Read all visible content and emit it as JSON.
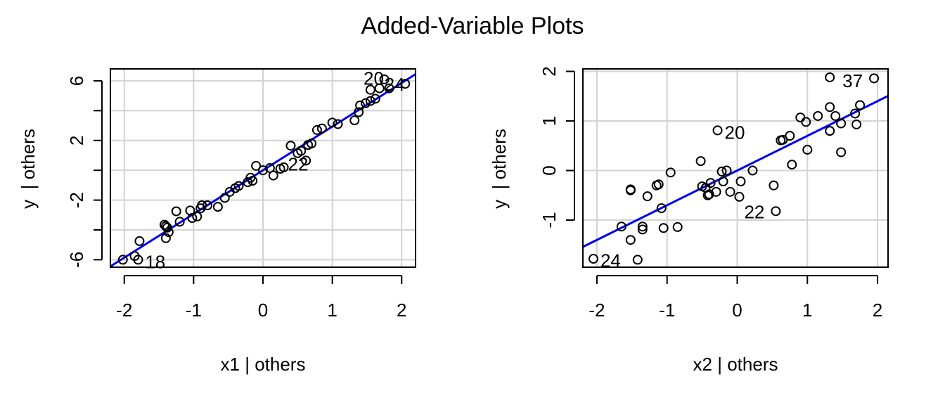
{
  "title": "Added-Variable Plots",
  "colors": {
    "fit_line": "#0000ee",
    "grid": "#d3d3d3",
    "point_stroke": "#000000",
    "frame": "#000000"
  },
  "chart_data": [
    {
      "type": "scatter",
      "xlabel": "x1 | others",
      "ylabel": "y  | others",
      "xlim": [
        -2.2,
        2.2
      ],
      "ylim": [
        -6.5,
        6.8
      ],
      "xticks": [
        -2,
        -1,
        0,
        1,
        2
      ],
      "xtick_labels": [
        "-2",
        "-1",
        "0",
        "1",
        "2"
      ],
      "yticks": [
        -6,
        -4,
        -2,
        0,
        2,
        4,
        6
      ],
      "ytick_labels": [
        "-6",
        "",
        "-2",
        "",
        "2",
        "",
        "6"
      ],
      "grid": true,
      "fit_line": {
        "slope": 2.93,
        "intercept": 0.0
      },
      "points": [
        [
          -2.02,
          -6.0
        ],
        [
          -1.85,
          -5.75
        ],
        [
          -1.8,
          -6.0
        ],
        [
          -1.78,
          -4.75
        ],
        [
          -1.4,
          -4.55
        ],
        [
          -1.42,
          -3.65
        ],
        [
          -1.4,
          -3.75
        ],
        [
          -1.36,
          -4.15
        ],
        [
          -1.38,
          -3.85
        ],
        [
          -1.25,
          -2.75
        ],
        [
          -1.2,
          -3.45
        ],
        [
          -1.05,
          -2.7
        ],
        [
          -1.02,
          -3.2
        ],
        [
          -0.95,
          -3.1
        ],
        [
          -0.9,
          -2.55
        ],
        [
          -0.88,
          -2.35
        ],
        [
          -0.8,
          -2.35
        ],
        [
          -0.65,
          -2.45
        ],
        [
          -0.55,
          -1.85
        ],
        [
          -0.48,
          -1.45
        ],
        [
          -0.4,
          -1.2
        ],
        [
          -0.35,
          -1.05
        ],
        [
          -0.22,
          -0.8
        ],
        [
          -0.18,
          -0.5
        ],
        [
          -0.15,
          -0.7
        ],
        [
          -0.1,
          0.3
        ],
        [
          0.0,
          0.0
        ],
        [
          0.1,
          0.15
        ],
        [
          0.15,
          -0.35
        ],
        [
          0.25,
          0.1
        ],
        [
          0.3,
          0.2
        ],
        [
          0.4,
          1.65
        ],
        [
          0.5,
          1.15
        ],
        [
          0.55,
          1.3
        ],
        [
          0.62,
          0.65
        ],
        [
          0.65,
          1.7
        ],
        [
          0.7,
          1.8
        ],
        [
          0.78,
          2.7
        ],
        [
          0.85,
          2.8
        ],
        [
          1.0,
          3.2
        ],
        [
          1.08,
          3.1
        ],
        [
          1.32,
          3.35
        ],
        [
          1.38,
          3.9
        ],
        [
          1.4,
          4.35
        ],
        [
          1.48,
          4.5
        ],
        [
          1.55,
          4.65
        ],
        [
          1.55,
          5.4
        ],
        [
          1.62,
          4.8
        ],
        [
          1.68,
          5.5
        ],
        [
          1.75,
          6.1
        ],
        [
          1.82,
          5.5
        ],
        [
          2.05,
          5.8
        ]
      ],
      "labels": [
        {
          "text": "20",
          "x": 1.45,
          "y": 6.2
        },
        {
          "text": "24",
          "x": 1.75,
          "y": 5.8
        },
        {
          "text": "22",
          "x": 0.36,
          "y": 0.45
        },
        {
          "text": "18",
          "x": -1.7,
          "y": -6.1
        }
      ]
    },
    {
      "type": "scatter",
      "xlabel": "x2 | others",
      "ylabel": "y  | others",
      "xlim": [
        -2.2,
        2.15
      ],
      "ylim": [
        -1.95,
        2.05
      ],
      "xticks": [
        -2,
        -1,
        0,
        1,
        2
      ],
      "xtick_labels": [
        "-2",
        "-1",
        "0",
        "1",
        "2"
      ],
      "yticks": [
        -1,
        0,
        1,
        2
      ],
      "ytick_labels": [
        "-1",
        "0",
        "1",
        "2"
      ],
      "grid": true,
      "fit_line": {
        "slope": 0.7,
        "intercept": 0.0
      },
      "points": [
        [
          -2.05,
          -1.78
        ],
        [
          -1.65,
          -1.13
        ],
        [
          -1.52,
          -1.4
        ],
        [
          -1.52,
          -0.38
        ],
        [
          -1.52,
          -0.4
        ],
        [
          -1.42,
          -1.8
        ],
        [
          -1.35,
          -1.13
        ],
        [
          -1.35,
          -1.19
        ],
        [
          -1.28,
          -0.52
        ],
        [
          -1.15,
          -0.3
        ],
        [
          -1.12,
          -0.28
        ],
        [
          -1.08,
          -0.76
        ],
        [
          -1.05,
          -1.16
        ],
        [
          -0.95,
          -0.04
        ],
        [
          -0.85,
          -1.14
        ],
        [
          -0.52,
          0.19
        ],
        [
          -0.5,
          -0.32
        ],
        [
          -0.45,
          -0.35
        ],
        [
          -0.42,
          -0.5
        ],
        [
          -0.4,
          -0.48
        ],
        [
          -0.38,
          -0.25
        ],
        [
          -0.3,
          -0.43
        ],
        [
          -0.28,
          0.81
        ],
        [
          -0.22,
          -0.02
        ],
        [
          -0.2,
          -0.22
        ],
        [
          -0.15,
          0.0
        ],
        [
          -0.1,
          -0.43
        ],
        [
          0.03,
          -0.53
        ],
        [
          0.05,
          -0.22
        ],
        [
          0.22,
          0.0
        ],
        [
          0.52,
          -0.3
        ],
        [
          0.55,
          -0.82
        ],
        [
          0.62,
          0.61
        ],
        [
          0.65,
          0.62
        ],
        [
          0.75,
          0.7
        ],
        [
          0.78,
          0.12
        ],
        [
          0.9,
          1.07
        ],
        [
          0.98,
          0.98
        ],
        [
          1.0,
          0.42
        ],
        [
          1.15,
          1.1
        ],
        [
          1.32,
          1.88
        ],
        [
          1.32,
          1.28
        ],
        [
          1.32,
          0.8
        ],
        [
          1.4,
          1.1
        ],
        [
          1.48,
          0.95
        ],
        [
          1.48,
          0.37
        ],
        [
          1.68,
          1.15
        ],
        [
          1.7,
          0.93
        ],
        [
          1.75,
          1.32
        ],
        [
          1.95,
          1.86
        ]
      ],
      "labels": [
        {
          "text": "37",
          "x": 1.5,
          "y": 1.82
        },
        {
          "text": "20",
          "x": -0.18,
          "y": 0.78
        },
        {
          "text": "22",
          "x": 0.1,
          "y": -0.82
        },
        {
          "text": "24",
          "x": -1.95,
          "y": -1.8
        }
      ]
    }
  ]
}
